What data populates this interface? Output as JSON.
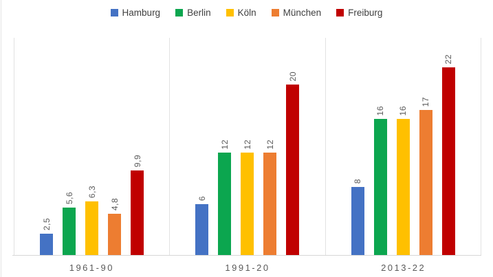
{
  "colors": {
    "background": "#ffffff",
    "grid_line": "#e2e2e2",
    "axis_line": "#d6d6d6",
    "value_label_text": "#595959",
    "category_label_text": "#595959",
    "legend_text": "#3f3f3f"
  },
  "legend": {
    "position": "top-center",
    "items": [
      {
        "label": "Hamburg",
        "color": "#4472c4"
      },
      {
        "label": "Berlin",
        "color": "#0ca64f"
      },
      {
        "label": "Köln",
        "color": "#ffc000"
      },
      {
        "label": "München",
        "color": "#ed7d31"
      },
      {
        "label": "Freiburg",
        "color": "#c00000"
      }
    ]
  },
  "chart_data": {
    "type": "bar",
    "title": "",
    "xlabel": "",
    "ylabel": "",
    "categories": [
      "1961-90",
      "1991-20",
      "2013-22"
    ],
    "series": [
      {
        "name": "Hamburg",
        "color": "#4472c4",
        "values": [
          2.5,
          6,
          8
        ],
        "labels": [
          "2,5",
          "6",
          "8"
        ]
      },
      {
        "name": "Berlin",
        "color": "#0ca64f",
        "values": [
          5.6,
          12,
          16
        ],
        "labels": [
          "5,6",
          "12",
          "16"
        ]
      },
      {
        "name": "Köln",
        "color": "#ffc000",
        "values": [
          6.3,
          12,
          16
        ],
        "labels": [
          "6,3",
          "12",
          "16"
        ]
      },
      {
        "name": "München",
        "color": "#ed7d31",
        "values": [
          4.8,
          12,
          17
        ],
        "labels": [
          "4,8",
          "12",
          "17"
        ]
      },
      {
        "name": "Freiburg",
        "color": "#c00000",
        "values": [
          9.9,
          20,
          22
        ],
        "labels": [
          "9,9",
          "20",
          "22"
        ]
      }
    ],
    "ylim": [
      0,
      25
    ],
    "y_axis_visible": false,
    "grid": "vertical category separators only",
    "legend_position": "top",
    "value_labels": "above bars, rotated 90° counterclockwise",
    "decimal_separator": ","
  }
}
